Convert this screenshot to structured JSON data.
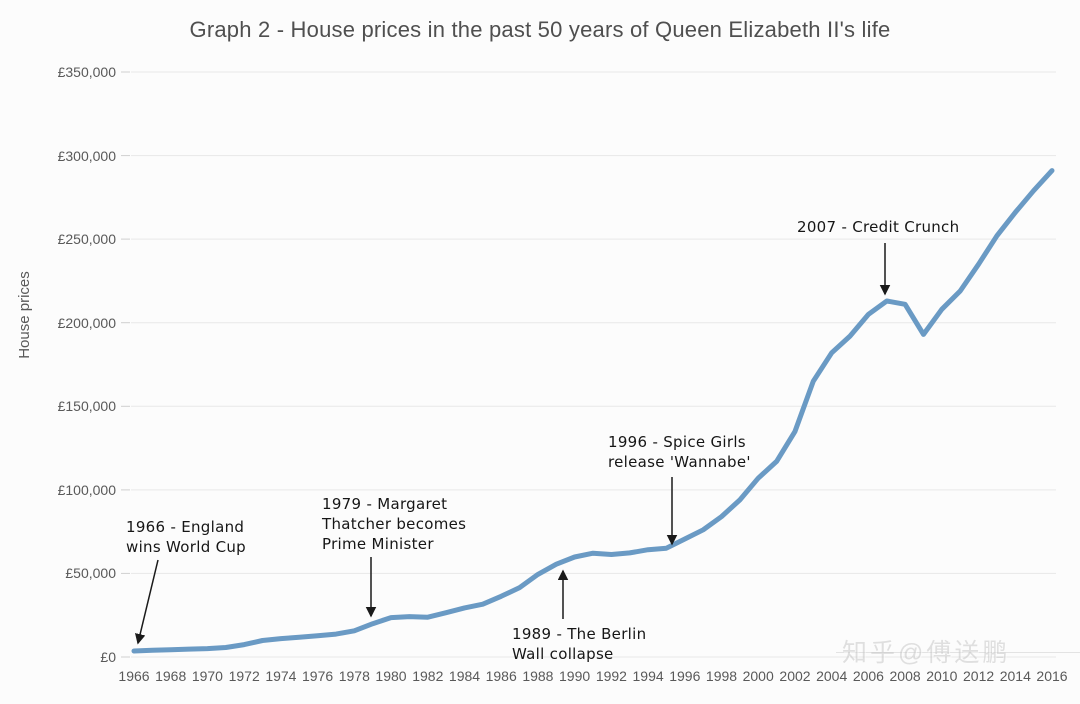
{
  "watermark": "知乎@傅送鹏",
  "chart_data": {
    "type": "line",
    "title": "Graph 2 - House prices in the past 50 years of Queen Elizabeth II's life",
    "xlabel": "",
    "ylabel": "House prices",
    "xlim": [
      1966,
      2016
    ],
    "ylim": [
      0,
      350000
    ],
    "grid": true,
    "legend": "none",
    "line_color": "#6a9ac4",
    "grid_color": "#e8e8e8",
    "annotation_color": "#1a1a1a",
    "x_tick_labels": [
      1966,
      1968,
      1970,
      1972,
      1974,
      1976,
      1978,
      1980,
      1982,
      1984,
      1986,
      1988,
      1990,
      1992,
      1994,
      1996,
      1998,
      2000,
      2002,
      2004,
      2006,
      2008,
      2010,
      2012,
      2014,
      2016
    ],
    "y_ticks": [
      {
        "value": 0,
        "label": "£0"
      },
      {
        "value": 50000,
        "label": "£50,000"
      },
      {
        "value": 100000,
        "label": "£100,000"
      },
      {
        "value": 150000,
        "label": "£150,000"
      },
      {
        "value": 200000,
        "label": "£200,000"
      },
      {
        "value": 250000,
        "label": "£250,000"
      },
      {
        "value": 300000,
        "label": "£300,000"
      },
      {
        "value": 350000,
        "label": "£350,000"
      }
    ],
    "series": [
      {
        "x": [
          1966,
          1967,
          1968,
          1969,
          1970,
          1971,
          1972,
          1973,
          1974,
          1975,
          1976,
          1977,
          1978,
          1979,
          1980,
          1981,
          1982,
          1983,
          1984,
          1985,
          1986,
          1987,
          1988,
          1989,
          1990,
          1991,
          1992,
          1993,
          1994,
          1995,
          1996,
          1997,
          1998,
          1999,
          2000,
          2001,
          2002,
          2003,
          2004,
          2005,
          2006,
          2007,
          2008,
          2009,
          2010,
          2011,
          2012,
          2013,
          2014,
          2015,
          2016
        ],
        "values": [
          3600,
          4000,
          4300,
          4700,
          5000,
          5700,
          7400,
          9900,
          11000,
          11800,
          12700,
          13700,
          15700,
          19900,
          23600,
          24200,
          23800,
          26500,
          29400,
          31600,
          36300,
          41500,
          49400,
          55500,
          59800,
          62100,
          61300,
          62300,
          64200,
          65100,
          70600,
          76100,
          84000,
          94000,
          107000,
          117000,
          135000,
          165000,
          182000,
          192000,
          205000,
          213000,
          211000,
          193000,
          208000,
          219000,
          235000,
          252000,
          266000,
          279000,
          291000
        ]
      }
    ],
    "annotations": [
      {
        "year": 1966,
        "value": 3600,
        "text": "1966 - England wins World Cup",
        "lines": [
          "1966 - England",
          "wins World Cup"
        ]
      },
      {
        "year": 1979,
        "value": 19900,
        "text": "1979 - Margaret Thatcher becomes Prime Minister",
        "lines": [
          "1979 - Margaret",
          "Thatcher becomes",
          "Prime Minister"
        ]
      },
      {
        "year": 1989,
        "value": 55500,
        "text": "1989 - The Berlin Wall collapse",
        "lines": [
          "1989 - The Berlin",
          "Wall collapse"
        ]
      },
      {
        "year": 1996,
        "value": 70600,
        "text": "1996 - Spice Girls release 'Wannabe'",
        "lines": [
          "1996 - Spice Girls",
          "release 'Wannabe'"
        ]
      },
      {
        "year": 2007,
        "value": 213000,
        "text": "2007 - Credit Crunch",
        "lines": [
          "2007 - Credit Crunch"
        ]
      }
    ]
  }
}
